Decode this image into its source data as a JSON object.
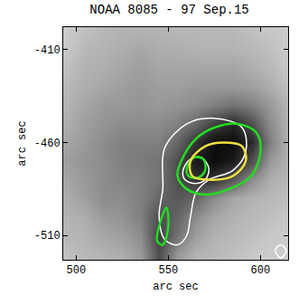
{
  "chart_data": {
    "type": "heatmap",
    "title": "NOAA 8085 - 97 Sep.15",
    "x_label": "arc sec",
    "y_label": "arc sec",
    "xlim": [
      493,
      615
    ],
    "ylim": [
      -523,
      -398
    ],
    "xticks": [
      500,
      550,
      600
    ],
    "yticks": [
      -410,
      -460,
      -510
    ],
    "zlim": [
      0,
      1
    ],
    "grid": false,
    "image": {
      "x": [
        495,
        505,
        515,
        525,
        535,
        545,
        555,
        565,
        575,
        585,
        595,
        605,
        615
      ],
      "y": [
        -520,
        -510,
        -500,
        -490,
        -480,
        -470,
        -460,
        -450,
        -440,
        -430,
        -420,
        -410,
        -400
      ],
      "z": [
        [
          0.75,
          0.72,
          0.7,
          0.68,
          0.6,
          0.3,
          0.6,
          0.7,
          0.72,
          0.75,
          0.78,
          0.8,
          0.8
        ],
        [
          0.72,
          0.7,
          0.65,
          0.62,
          0.55,
          0.25,
          0.45,
          0.62,
          0.7,
          0.72,
          0.75,
          0.78,
          0.8
        ],
        [
          0.7,
          0.68,
          0.6,
          0.58,
          0.5,
          0.3,
          0.4,
          0.55,
          0.65,
          0.7,
          0.72,
          0.75,
          0.78
        ],
        [
          0.68,
          0.62,
          0.55,
          0.55,
          0.5,
          0.4,
          0.35,
          0.4,
          0.55,
          0.65,
          0.7,
          0.72,
          0.75
        ],
        [
          0.65,
          0.6,
          0.55,
          0.52,
          0.5,
          0.45,
          0.3,
          0.2,
          0.2,
          0.35,
          0.55,
          0.68,
          0.72
        ],
        [
          0.62,
          0.58,
          0.55,
          0.5,
          0.48,
          0.45,
          0.3,
          0.1,
          0.05,
          0.1,
          0.3,
          0.6,
          0.7
        ],
        [
          0.65,
          0.6,
          0.55,
          0.5,
          0.5,
          0.5,
          0.4,
          0.2,
          0.05,
          0.05,
          0.15,
          0.5,
          0.7
        ],
        [
          0.68,
          0.62,
          0.58,
          0.55,
          0.55,
          0.55,
          0.5,
          0.4,
          0.25,
          0.15,
          0.3,
          0.55,
          0.7
        ],
        [
          0.7,
          0.65,
          0.6,
          0.6,
          0.58,
          0.6,
          0.58,
          0.55,
          0.5,
          0.45,
          0.5,
          0.6,
          0.72
        ],
        [
          0.72,
          0.68,
          0.65,
          0.62,
          0.6,
          0.62,
          0.62,
          0.6,
          0.6,
          0.6,
          0.62,
          0.68,
          0.75
        ],
        [
          0.75,
          0.7,
          0.68,
          0.65,
          0.62,
          0.65,
          0.65,
          0.65,
          0.65,
          0.65,
          0.68,
          0.72,
          0.78
        ],
        [
          0.78,
          0.72,
          0.7,
          0.68,
          0.65,
          0.68,
          0.68,
          0.7,
          0.7,
          0.7,
          0.72,
          0.75,
          0.8
        ],
        [
          0.8,
          0.75,
          0.72,
          0.7,
          0.7,
          0.7,
          0.72,
          0.72,
          0.72,
          0.72,
          0.75,
          0.78,
          0.8
        ]
      ]
    },
    "series": [
      {
        "type": "line",
        "color": "#ffffff",
        "x": [
          548,
          560,
          575,
          590,
          592,
          585,
          572,
          565,
          562,
          560,
          555,
          548,
          545,
          547,
          548
        ],
        "y": [
          -463,
          -450,
          -447,
          -452,
          -465,
          -475,
          -480,
          -487,
          -500,
          -510,
          -515,
          -512,
          -500,
          -485,
          -463
        ]
      },
      {
        "type": "line",
        "color": "#ffffff",
        "x": [
          558,
          562,
          568,
          572,
          570,
          565,
          559,
          558
        ],
        "y": [
          -475,
          -469,
          -468,
          -474,
          -480,
          -482,
          -480,
          -475
        ]
      },
      {
        "type": "line",
        "color": "#ffffff",
        "x": [
          608,
          611,
          614,
          611,
          608
        ],
        "y": [
          -518,
          -515,
          -518,
          -522,
          -518
        ]
      },
      {
        "type": "line",
        "color": "#22dd22",
        "x": [
          557,
          565,
          575,
          588,
          598,
          600,
          595,
          583,
          570,
          560,
          555,
          557
        ],
        "y": [
          -470,
          -458,
          -452,
          -450,
          -455,
          -465,
          -478,
          -485,
          -488,
          -485,
          -478,
          -470
        ]
      },
      {
        "type": "line",
        "color": "#22dd22",
        "x": [
          545,
          549,
          550,
          547,
          544,
          545
        ],
        "y": [
          -505,
          -495,
          -505,
          -515,
          -513,
          -505
        ]
      },
      {
        "type": "line",
        "color": "#22dd22",
        "x": [
          560,
          564,
          569,
          570,
          566,
          561,
          560
        ],
        "y": [
          -474,
          -468,
          -469,
          -475,
          -479,
          -478,
          -474
        ]
      },
      {
        "type": "line",
        "color": "#f0e040",
        "x": [
          562,
          570,
          580,
          590,
          592,
          585,
          572,
          563,
          562
        ],
        "y": [
          -470,
          -462,
          -460,
          -462,
          -470,
          -478,
          -480,
          -478,
          -470
        ]
      }
    ]
  }
}
